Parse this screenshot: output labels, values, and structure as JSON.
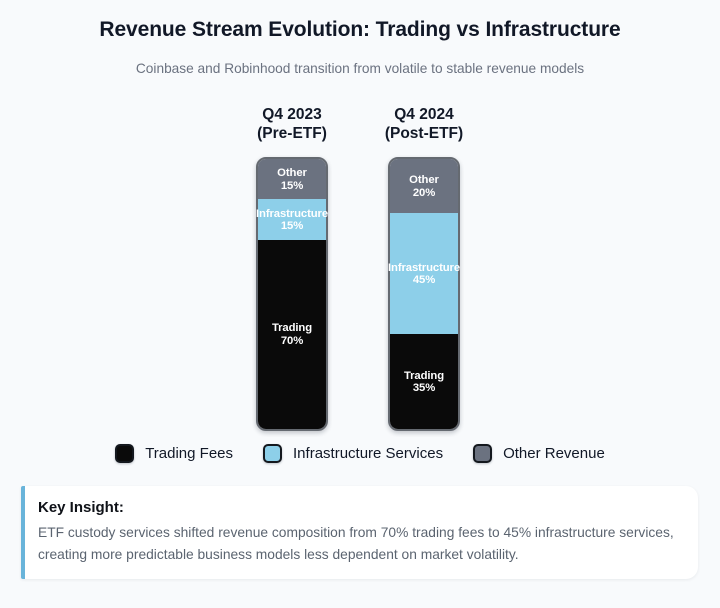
{
  "title": "Revenue Stream Evolution: Trading vs Infrastructure",
  "subtitle": "Coinbase and Robinhood transition from volatile to stable revenue models",
  "colors": {
    "background": "#f8fafc",
    "trading": "#0a0a0a",
    "infrastructure": "#8dcfe9",
    "other": "#6b7280",
    "insight_accent": "#69b4da",
    "insight_background": "#ffffff",
    "title_text": "#111827",
    "muted_text": "#6b7280"
  },
  "chart_data": {
    "type": "bar",
    "stacked": true,
    "orientation": "vertical",
    "value_unit": "%",
    "ylim": [
      0,
      100
    ],
    "grid": false,
    "legend_position": "bottom",
    "title": "Revenue Stream Evolution: Trading vs Infrastructure",
    "subtitle": "Coinbase and Robinhood transition from volatile to stable revenue models",
    "categories": [
      "Q4 2023 (Pre-ETF)",
      "Q4 2024 (Post-ETF)"
    ],
    "category_lines": [
      [
        "Q4 2023",
        "(Pre-ETF)"
      ],
      [
        "Q4 2024",
        "(Post-ETF)"
      ]
    ],
    "series": [
      {
        "name": "Other",
        "legend_label": "Other Revenue",
        "color": "#6b7280",
        "values": [
          15,
          20
        ]
      },
      {
        "name": "Infrastructure",
        "legend_label": "Infrastructure Services",
        "color": "#8dcfe9",
        "values": [
          15,
          45
        ]
      },
      {
        "name": "Trading",
        "legend_label": "Trading Fees",
        "color": "#0a0a0a",
        "values": [
          70,
          35
        ]
      }
    ]
  },
  "legend": {
    "items": [
      {
        "label": "Trading Fees",
        "color": "#0a0a0a"
      },
      {
        "label": "Infrastructure Services",
        "color": "#8dcfe9"
      },
      {
        "label": "Other Revenue",
        "color": "#6b7280"
      }
    ]
  },
  "insight": {
    "heading": "Key Insight:",
    "text": "ETF custody services shifted revenue composition from 70% trading fees to 45% infrastructure services, creating more predictable business models less dependent on market volatility.",
    "lines": [
      "ETF custody services shifted revenue composition from 70% trading fees to 45% infrastructure services,",
      "creating more predictable business models less dependent on market volatility."
    ]
  }
}
